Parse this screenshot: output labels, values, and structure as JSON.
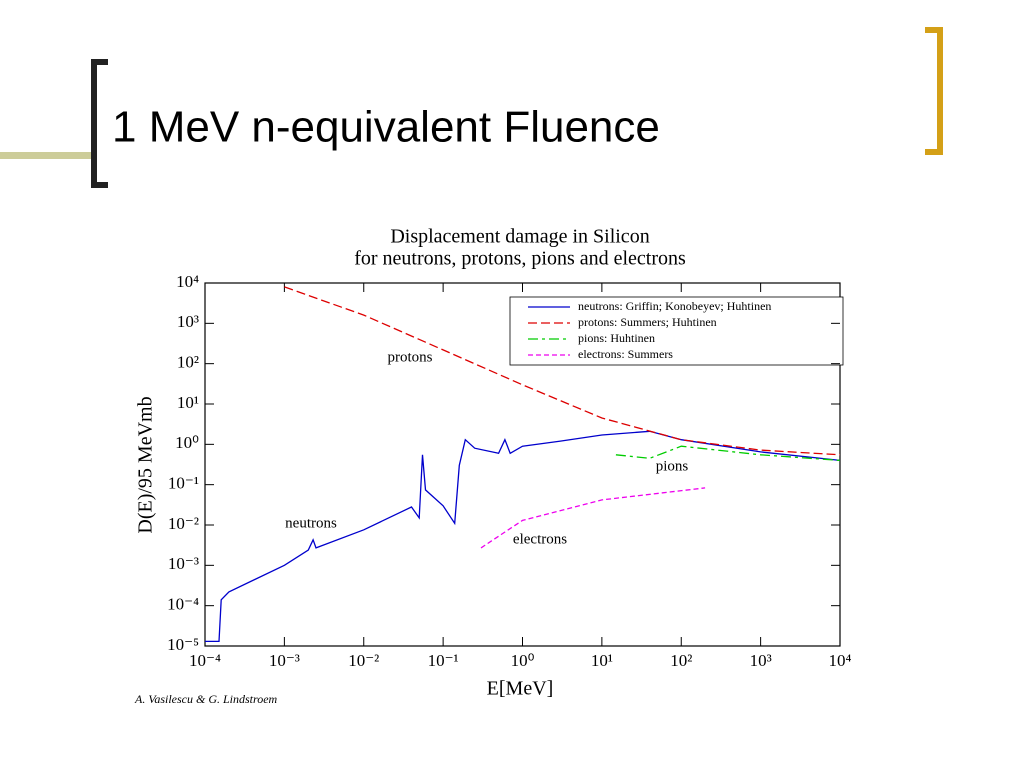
{
  "slide_title": "1 MeV n-equivalent Fluence",
  "chart_data": {
    "type": "line",
    "title": "Displacement damage in Silicon",
    "subtitle": "for neutrons, protons, pions and electrons",
    "x_label": "E[MeV]",
    "y_label": "D(E)/95 MeVmb",
    "log_x": true,
    "log_y": true,
    "xlim": [
      0.0001,
      10000
    ],
    "ylim": [
      1e-05,
      10000
    ],
    "xticks": [
      {
        "value": 0.0001,
        "label": "10⁻⁴"
      },
      {
        "value": 0.001,
        "label": "10⁻³"
      },
      {
        "value": 0.01,
        "label": "10⁻²"
      },
      {
        "value": 0.1,
        "label": "10⁻¹"
      },
      {
        "value": 1,
        "label": "10⁰"
      },
      {
        "value": 10,
        "label": "10¹"
      },
      {
        "value": 100,
        "label": "10²"
      },
      {
        "value": 1000,
        "label": "10³"
      },
      {
        "value": 10000,
        "label": "10⁴"
      }
    ],
    "yticks": [
      {
        "value": 1e-05,
        "label": "10⁻⁵"
      },
      {
        "value": 0.0001,
        "label": "10⁻⁴"
      },
      {
        "value": 0.001,
        "label": "10⁻³"
      },
      {
        "value": 0.01,
        "label": "10⁻²"
      },
      {
        "value": 0.1,
        "label": "10⁻¹"
      },
      {
        "value": 1,
        "label": "10⁰"
      },
      {
        "value": 10,
        "label": "10¹"
      },
      {
        "value": 100,
        "label": "10²"
      },
      {
        "value": 1000,
        "label": "10³"
      },
      {
        "value": 10000,
        "label": "10⁴"
      }
    ],
    "legend": "top-right",
    "series": [
      {
        "name": "neutrons: Griffin; Konobeyev; Huhtinen",
        "color": "#0000cc",
        "style": "solid",
        "x": [
          0.0001,
          0.00015,
          0.00016,
          0.0002,
          0.001,
          0.002,
          0.0023,
          0.0025,
          0.01,
          0.04,
          0.05,
          0.055,
          0.06,
          0.1,
          0.14,
          0.16,
          0.19,
          0.25,
          0.5,
          0.6,
          0.7,
          1,
          3,
          10,
          40,
          100,
          1000,
          10000
        ],
        "values": [
          1.3e-05,
          1.3e-05,
          0.00014,
          0.00022,
          0.001,
          0.0024,
          0.0043,
          0.0027,
          0.0076,
          0.028,
          0.015,
          0.55,
          0.074,
          0.03,
          0.011,
          0.3,
          1.3,
          0.8,
          0.6,
          1.3,
          0.6,
          0.9,
          1.2,
          1.7,
          2.1,
          1.3,
          0.65,
          0.4
        ]
      },
      {
        "name": "protons: Summers; Huhtinen",
        "color": "#dd0000",
        "style": "dashed",
        "x": [
          0.001,
          0.01,
          0.1,
          1,
          10,
          100,
          1000,
          10000
        ],
        "values": [
          8000,
          1600,
          220,
          30,
          4.5,
          1.3,
          0.72,
          0.55
        ]
      },
      {
        "name": "pions: Huhtinen",
        "color": "#00cc00",
        "style": "dash-dot",
        "x": [
          15,
          40,
          100,
          1000,
          10000
        ],
        "values": [
          0.55,
          0.45,
          0.9,
          0.55,
          0.4
        ]
      },
      {
        "name": "electrons: Summers",
        "color": "#ee00ee",
        "style": "short-dash",
        "x": [
          0.3,
          1,
          10,
          200
        ],
        "values": [
          0.0027,
          0.013,
          0.042,
          0.083
        ]
      }
    ],
    "annotations": [
      "protons",
      "pions",
      "neutrons",
      "electrons"
    ],
    "credit": "A. Vasilescu & G. Lindstroem"
  }
}
